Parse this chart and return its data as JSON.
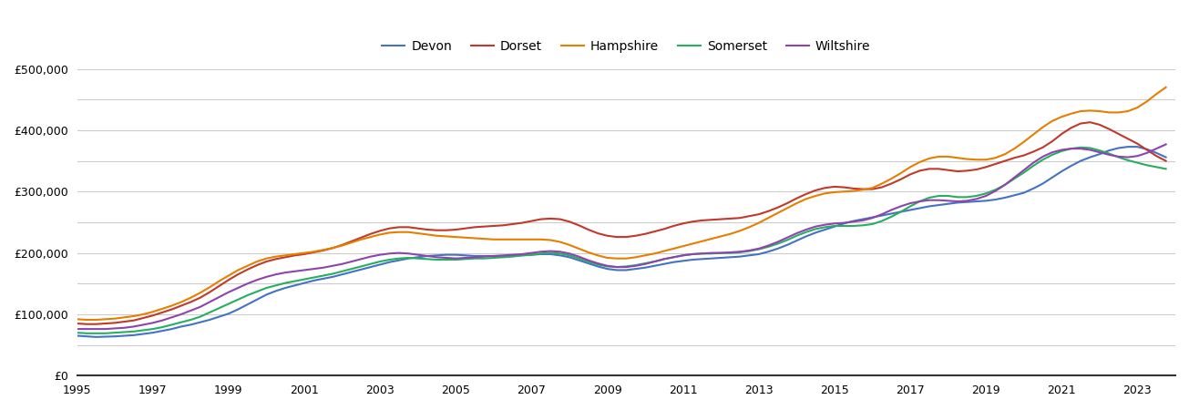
{
  "years": [
    1995.0,
    1995.25,
    1995.5,
    1995.75,
    1996.0,
    1996.25,
    1996.5,
    1996.75,
    1997.0,
    1997.25,
    1997.5,
    1997.75,
    1998.0,
    1998.25,
    1998.5,
    1998.75,
    1999.0,
    1999.25,
    1999.5,
    1999.75,
    2000.0,
    2000.25,
    2000.5,
    2000.75,
    2001.0,
    2001.25,
    2001.5,
    2001.75,
    2002.0,
    2002.25,
    2002.5,
    2002.75,
    2003.0,
    2003.25,
    2003.5,
    2003.75,
    2004.0,
    2004.25,
    2004.5,
    2004.75,
    2005.0,
    2005.25,
    2005.5,
    2005.75,
    2006.0,
    2006.25,
    2006.5,
    2006.75,
    2007.0,
    2007.25,
    2007.5,
    2007.75,
    2008.0,
    2008.25,
    2008.5,
    2008.75,
    2009.0,
    2009.25,
    2009.5,
    2009.75,
    2010.0,
    2010.25,
    2010.5,
    2010.75,
    2011.0,
    2011.25,
    2011.5,
    2011.75,
    2012.0,
    2012.25,
    2012.5,
    2012.75,
    2013.0,
    2013.25,
    2013.5,
    2013.75,
    2014.0,
    2014.25,
    2014.5,
    2014.75,
    2015.0,
    2015.25,
    2015.5,
    2015.75,
    2016.0,
    2016.25,
    2016.5,
    2016.75,
    2017.0,
    2017.25,
    2017.5,
    2017.75,
    2018.0,
    2018.25,
    2018.5,
    2018.75,
    2019.0,
    2019.25,
    2019.5,
    2019.75,
    2020.0,
    2020.25,
    2020.5,
    2020.75,
    2021.0,
    2021.25,
    2021.5,
    2021.75,
    2022.0,
    2022.25,
    2022.5,
    2022.75,
    2023.0,
    2023.25,
    2023.5,
    2023.75
  ],
  "Devon": [
    65000,
    64000,
    63000,
    63500,
    64000,
    65000,
    66000,
    68000,
    70000,
    73000,
    76000,
    80000,
    83000,
    87000,
    91000,
    96000,
    101000,
    108000,
    116000,
    124000,
    132000,
    138000,
    143000,
    147000,
    151000,
    155000,
    158000,
    161000,
    165000,
    169000,
    173000,
    177000,
    181000,
    185000,
    188000,
    191000,
    193000,
    195000,
    196000,
    197000,
    197000,
    196000,
    195000,
    195000,
    195000,
    195000,
    195000,
    196000,
    197000,
    198000,
    198000,
    196000,
    193000,
    188000,
    183000,
    178000,
    174000,
    172000,
    172000,
    174000,
    176000,
    179000,
    182000,
    185000,
    187000,
    189000,
    190000,
    191000,
    192000,
    193000,
    194000,
    196000,
    198000,
    202000,
    207000,
    213000,
    220000,
    227000,
    233000,
    238000,
    243000,
    248000,
    252000,
    255000,
    258000,
    261000,
    264000,
    267000,
    270000,
    273000,
    276000,
    278000,
    280000,
    282000,
    283000,
    284000,
    285000,
    287000,
    290000,
    294000,
    298000,
    305000,
    313000,
    323000,
    333000,
    342000,
    350000,
    356000,
    361000,
    367000,
    371000,
    373000,
    373000,
    369000,
    363000,
    356000
  ],
  "Dorset": [
    85000,
    84000,
    84000,
    85000,
    86000,
    88000,
    90000,
    94000,
    98000,
    103000,
    108000,
    114000,
    120000,
    127000,
    136000,
    146000,
    156000,
    165000,
    173000,
    180000,
    186000,
    190000,
    193000,
    196000,
    198000,
    201000,
    204000,
    208000,
    213000,
    219000,
    225000,
    231000,
    236000,
    240000,
    242000,
    242000,
    240000,
    238000,
    237000,
    237000,
    238000,
    240000,
    242000,
    243000,
    244000,
    245000,
    247000,
    249000,
    252000,
    255000,
    256000,
    255000,
    251000,
    245000,
    238000,
    232000,
    228000,
    226000,
    226000,
    228000,
    231000,
    235000,
    239000,
    244000,
    248000,
    251000,
    253000,
    254000,
    255000,
    256000,
    257000,
    260000,
    263000,
    268000,
    274000,
    281000,
    289000,
    296000,
    302000,
    306000,
    308000,
    307000,
    305000,
    304000,
    304000,
    307000,
    313000,
    320000,
    328000,
    334000,
    337000,
    337000,
    335000,
    333000,
    334000,
    336000,
    340000,
    345000,
    350000,
    355000,
    359000,
    365000,
    372000,
    382000,
    394000,
    404000,
    411000,
    413000,
    409000,
    402000,
    394000,
    386000,
    378000,
    368000,
    358000,
    350000
  ],
  "Hampshire": [
    92000,
    91000,
    91000,
    92000,
    93000,
    95000,
    97000,
    100000,
    104000,
    109000,
    114000,
    120000,
    127000,
    135000,
    144000,
    154000,
    163000,
    172000,
    179000,
    186000,
    191000,
    194000,
    196000,
    198000,
    200000,
    202000,
    205000,
    208000,
    212000,
    217000,
    222000,
    226000,
    230000,
    233000,
    234000,
    234000,
    232000,
    230000,
    228000,
    227000,
    226000,
    225000,
    224000,
    223000,
    222000,
    222000,
    222000,
    222000,
    222000,
    222000,
    221000,
    218000,
    213000,
    207000,
    201000,
    196000,
    192000,
    191000,
    191000,
    193000,
    196000,
    199000,
    203000,
    207000,
    211000,
    215000,
    219000,
    223000,
    227000,
    231000,
    236000,
    242000,
    249000,
    257000,
    265000,
    273000,
    281000,
    288000,
    293000,
    297000,
    299000,
    300000,
    301000,
    303000,
    306000,
    313000,
    321000,
    330000,
    340000,
    348000,
    354000,
    357000,
    357000,
    355000,
    353000,
    352000,
    352000,
    355000,
    361000,
    370000,
    381000,
    393000,
    405000,
    415000,
    422000,
    427000,
    431000,
    432000,
    431000,
    429000,
    429000,
    431000,
    437000,
    447000,
    459000,
    470000
  ],
  "Somerset": [
    70000,
    69000,
    69000,
    69000,
    70000,
    71000,
    72000,
    74000,
    76000,
    79000,
    83000,
    87000,
    91000,
    96000,
    103000,
    110000,
    117000,
    124000,
    131000,
    137000,
    143000,
    147000,
    151000,
    154000,
    157000,
    160000,
    163000,
    166000,
    170000,
    174000,
    178000,
    182000,
    186000,
    189000,
    191000,
    192000,
    191000,
    190000,
    189000,
    189000,
    189000,
    190000,
    191000,
    191000,
    192000,
    193000,
    194000,
    196000,
    197000,
    199000,
    200000,
    199000,
    196000,
    191000,
    186000,
    181000,
    178000,
    177000,
    178000,
    180000,
    183000,
    186000,
    190000,
    193000,
    196000,
    198000,
    199000,
    199000,
    200000,
    200000,
    201000,
    203000,
    206000,
    210000,
    215000,
    221000,
    228000,
    234000,
    239000,
    242000,
    244000,
    244000,
    244000,
    245000,
    247000,
    252000,
    259000,
    267000,
    276000,
    284000,
    290000,
    293000,
    293000,
    291000,
    291000,
    293000,
    297000,
    303000,
    311000,
    321000,
    331000,
    342000,
    352000,
    360000,
    366000,
    370000,
    372000,
    371000,
    367000,
    362000,
    356000,
    351000,
    347000,
    343000,
    340000,
    337000
  ],
  "Wiltshire": [
    76000,
    76000,
    76000,
    76000,
    77000,
    78000,
    80000,
    83000,
    86000,
    90000,
    95000,
    100000,
    106000,
    112000,
    120000,
    128000,
    136000,
    143000,
    150000,
    156000,
    161000,
    165000,
    168000,
    170000,
    172000,
    174000,
    176000,
    179000,
    182000,
    186000,
    190000,
    194000,
    197000,
    199000,
    200000,
    199000,
    197000,
    195000,
    193000,
    192000,
    191000,
    192000,
    193000,
    194000,
    195000,
    196000,
    197000,
    198000,
    200000,
    202000,
    203000,
    202000,
    199000,
    194000,
    188000,
    183000,
    179000,
    177000,
    177000,
    179000,
    182000,
    186000,
    190000,
    193000,
    196000,
    198000,
    199000,
    200000,
    200000,
    201000,
    202000,
    204000,
    207000,
    212000,
    218000,
    225000,
    232000,
    238000,
    243000,
    246000,
    248000,
    249000,
    251000,
    253000,
    257000,
    263000,
    270000,
    276000,
    281000,
    284000,
    286000,
    286000,
    285000,
    284000,
    285000,
    288000,
    293000,
    301000,
    311000,
    323000,
    335000,
    347000,
    357000,
    364000,
    368000,
    370000,
    370000,
    368000,
    364000,
    360000,
    357000,
    356000,
    358000,
    363000,
    370000,
    377000
  ],
  "colors": {
    "Devon": "#4472c4",
    "Dorset": "#c0392b",
    "Hampshire": "#e67e00",
    "Somerset": "#27ae60",
    "Wiltshire": "#8e44ad"
  },
  "ylim": [
    0,
    500000
  ],
  "yticks": [
    0,
    100000,
    200000,
    300000,
    400000,
    500000
  ],
  "yticks_minor": [
    50000,
    150000,
    250000,
    350000,
    450000
  ],
  "background_color": "#ffffff",
  "grid_color": "#cccccc",
  "legend_labels": [
    "Devon",
    "Dorset",
    "Hampshire",
    "Somerset",
    "Wiltshire"
  ],
  "xlim_start": 1995.0,
  "xlim_end": 2024.0,
  "xtick_years": [
    1995,
    1997,
    1999,
    2001,
    2003,
    2005,
    2007,
    2009,
    2011,
    2013,
    2015,
    2017,
    2019,
    2021,
    2023
  ]
}
